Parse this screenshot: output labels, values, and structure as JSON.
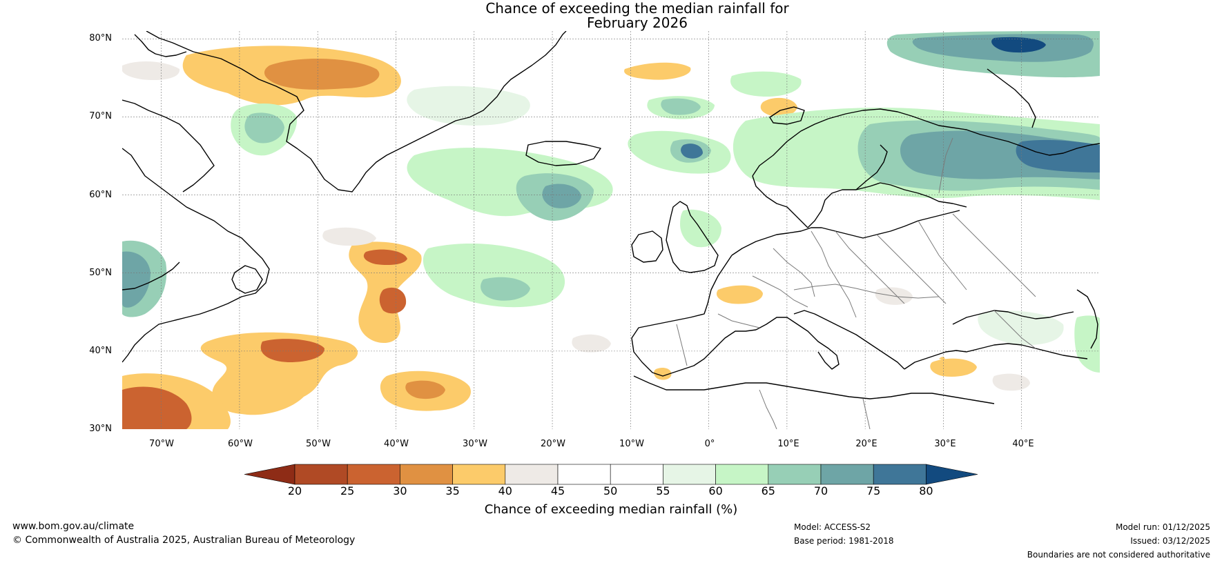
{
  "title": {
    "line1": "Chance of exceeding the median rainfall for",
    "line2": "February 2026"
  },
  "map": {
    "lat_labels": [
      "80°N",
      "70°N",
      "60°N",
      "50°N",
      "40°N",
      "30°N"
    ],
    "lat_values": [
      80,
      70,
      60,
      50,
      40,
      30
    ],
    "lon_labels": [
      "70°W",
      "60°W",
      "50°W",
      "40°W",
      "30°W",
      "20°W",
      "10°W",
      "0°",
      "10°E",
      "20°E",
      "30°E",
      "40°E"
    ],
    "lon_values": [
      -70,
      -60,
      -50,
      -40,
      -30,
      -20,
      -10,
      0,
      10,
      20,
      30,
      40
    ],
    "extent": {
      "lon_min": -75,
      "lon_max": 50,
      "lat_min": 30,
      "lat_max": 81
    }
  },
  "colorbar": {
    "title": "Chance of exceeding median rainfall (%)",
    "ticks": [
      "20",
      "25",
      "30",
      "35",
      "40",
      "45",
      "50",
      "55",
      "60",
      "65",
      "70",
      "75",
      "80"
    ],
    "colors": {
      "lt20": "#8e2c16",
      "c20_25": "#b04a25",
      "c25_30": "#cb6330",
      "c30_35": "#e09142",
      "c35_40": "#fccb6a",
      "c40_45": "#eeeae6",
      "c45_50": "#ffffff",
      "c50_55": "#ffffff",
      "c55_60": "#e6f5e6",
      "c60_65": "#c6f5c6",
      "c65_70": "#97cfb6",
      "c70_75": "#6ea5a6",
      "c75_80": "#3f7698",
      "gt80": "#124a7f"
    }
  },
  "footer": {
    "website": "www.bom.gov.au/climate",
    "copyright": "© Commonwealth of Australia 2025, Australian Bureau of Meteorology",
    "model": "Model: ACCESS-S2",
    "base_period": "Base period: 1981-2018",
    "model_run": "Model run: 01/12/2025",
    "issued": "Issued: 03/12/2025",
    "disclaimer": "Boundaries are not considered authoritative"
  }
}
